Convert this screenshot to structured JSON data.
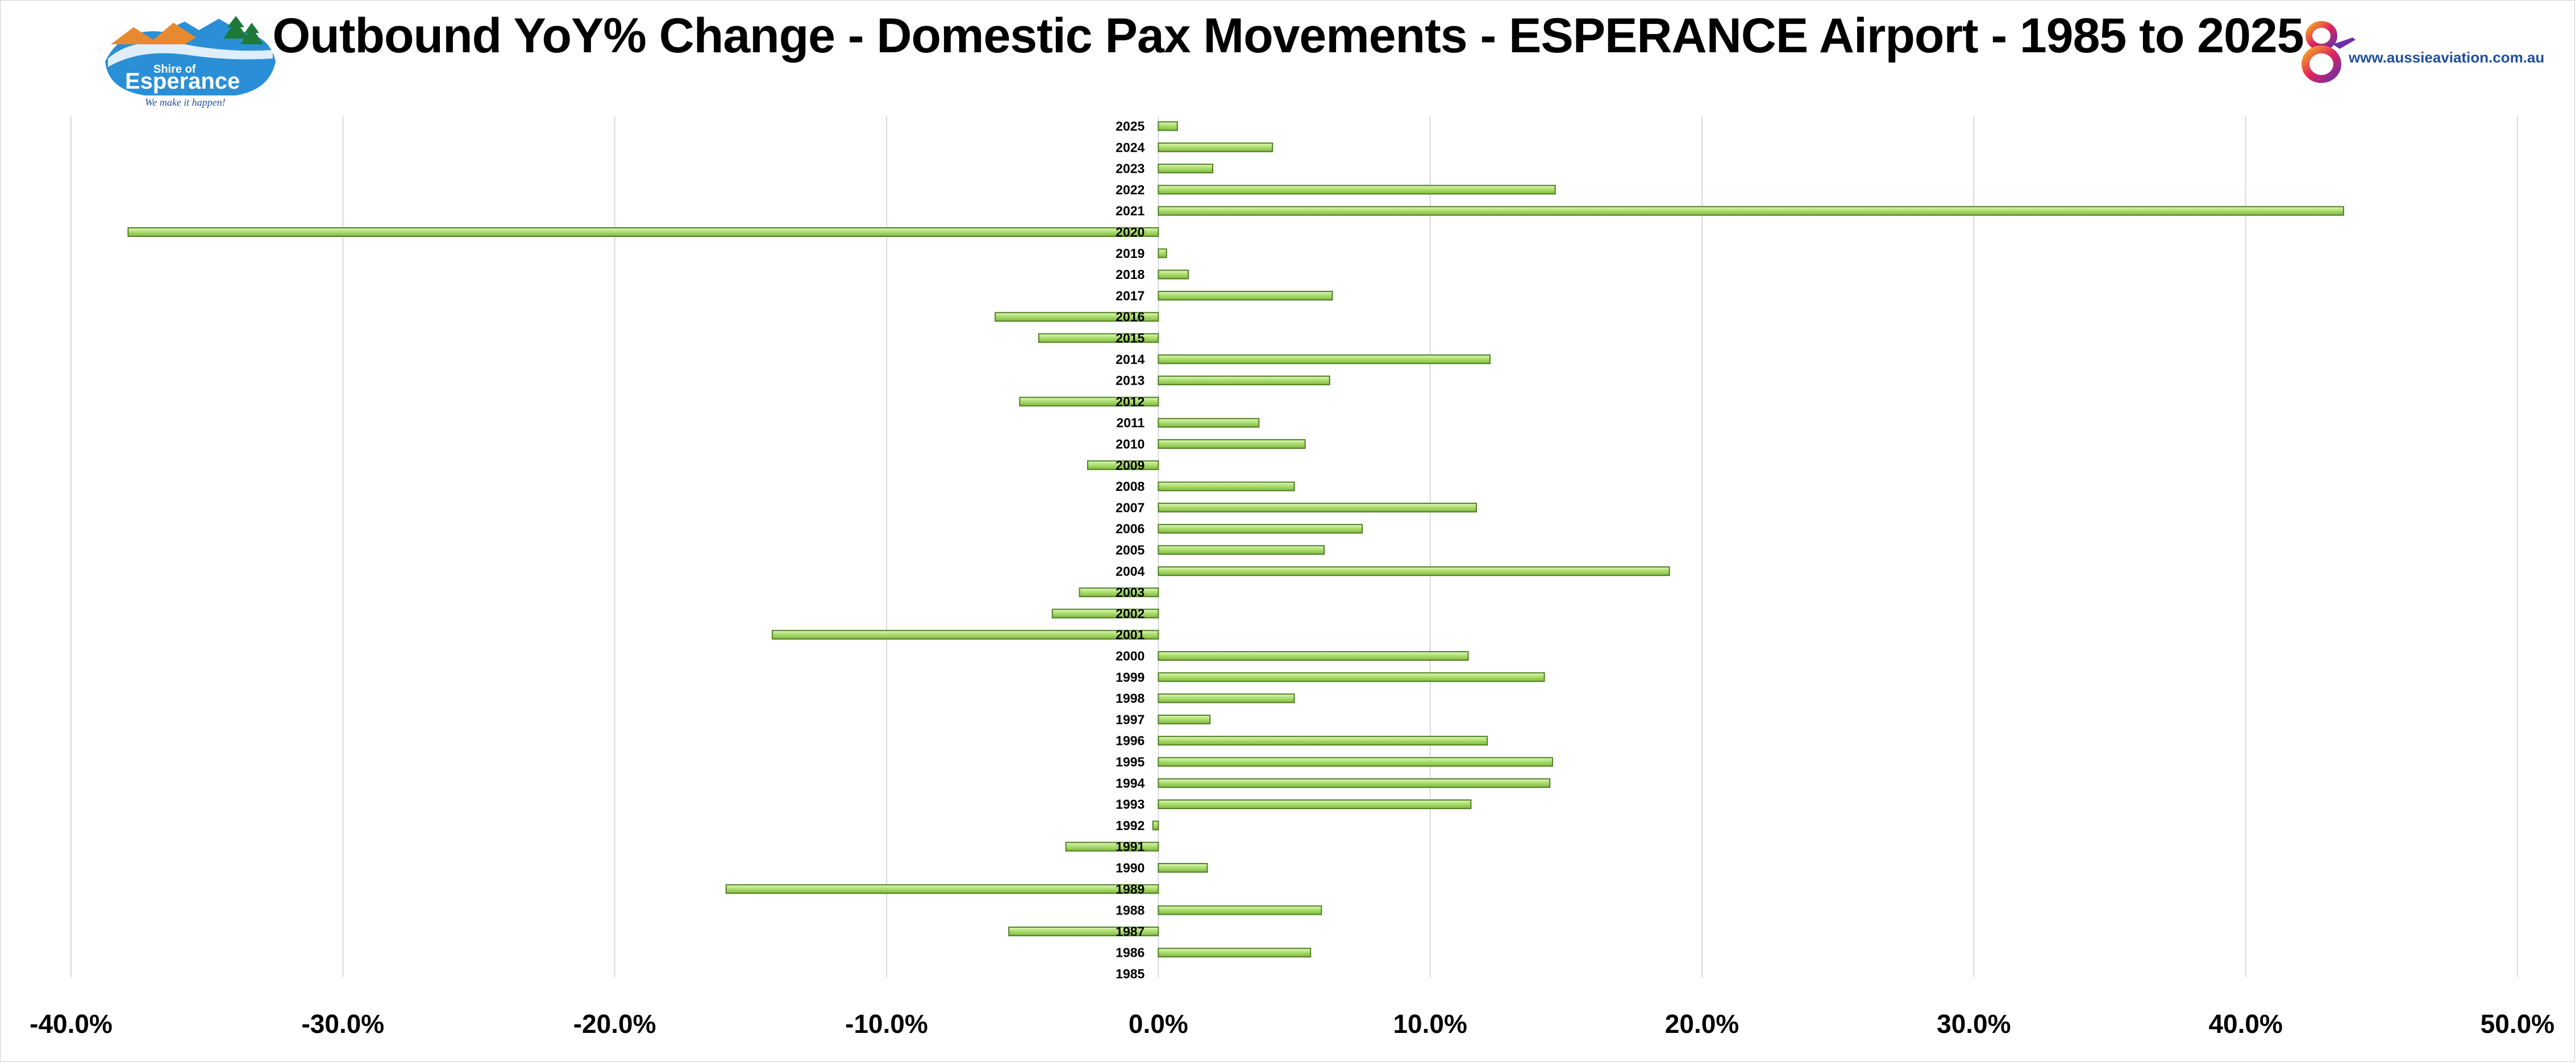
{
  "title": "Outbound YoY% Change - Domestic Pax Movements - ESPERANCE Airport - 1985 to 2025",
  "logos": {
    "left": {
      "name": "Shire of Esperance",
      "line1": "Shire of",
      "line2": "Esperance",
      "tagline": "We make it happen!"
    },
    "right": {
      "url": "www.aussieaviation.com.au"
    }
  },
  "colors": {
    "bar_fill": "#9bd45a",
    "bar_highlight": "#c9ef9a",
    "bar_edge": "#4f7f22",
    "grid": "#d9d9d9"
  },
  "chart_data": {
    "type": "bar",
    "orientation": "horizontal",
    "title": "Outbound YoY% Change - Domestic Pax Movements - ESPERANCE Airport - 1985 to 2025",
    "xlim": [
      -0.4,
      0.5
    ],
    "x_ticks": [
      -0.4,
      -0.3,
      -0.2,
      -0.1,
      0.0,
      0.1,
      0.2,
      0.3,
      0.4,
      0.5
    ],
    "x_tick_labels": [
      "-40.0%",
      "-30.0%",
      "-20.0%",
      "-10.0%",
      "0.0%",
      "10.0%",
      "20.0%",
      "30.0%",
      "40.0%",
      "50.0%"
    ],
    "grid": true,
    "legend": "none",
    "categories": [
      "2025",
      "2024",
      "2023",
      "2022",
      "2021",
      "2020",
      "2019",
      "2018",
      "2017",
      "2016",
      "2015",
      "2014",
      "2013",
      "2012",
      "2011",
      "2010",
      "2009",
      "2008",
      "2007",
      "2006",
      "2005",
      "2004",
      "2003",
      "2002",
      "2001",
      "2000",
      "1999",
      "1998",
      "1997",
      "1996",
      "1995",
      "1994",
      "1993",
      "1992",
      "1991",
      "1990",
      "1989",
      "1988",
      "1987",
      "1986",
      "1985"
    ],
    "values": [
      0.007,
      0.042,
      0.02,
      0.146,
      0.436,
      -0.379,
      0.003,
      0.011,
      0.064,
      -0.06,
      -0.044,
      0.122,
      0.063,
      -0.051,
      0.037,
      0.054,
      -0.026,
      0.05,
      0.117,
      0.075,
      0.061,
      0.188,
      -0.029,
      -0.039,
      -0.142,
      0.114,
      0.142,
      0.05,
      0.019,
      0.121,
      0.145,
      0.144,
      0.115,
      -0.002,
      -0.034,
      0.018,
      -0.159,
      0.06,
      -0.055,
      0.056,
      0.0
    ]
  }
}
